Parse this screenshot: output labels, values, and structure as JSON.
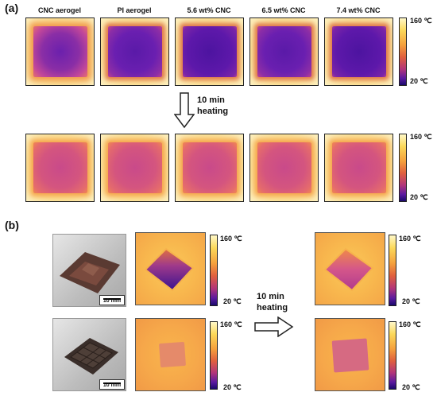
{
  "panel_a": {
    "label": "(a)",
    "columns": [
      "CNC aerogel",
      "PI aerogel",
      "5.6 wt%  CNC",
      "6.5 wt%  CNC",
      "7.4 wt%  CNC"
    ],
    "colorbar_top": "160 ℃",
    "colorbar_bottom": "20 ℃",
    "arrow_text_line1": "10 min",
    "arrow_text_line2": "heating"
  },
  "panel_b": {
    "label": "(b)",
    "scale_bar_1": "10 mm",
    "scale_bar_2": "10 mm",
    "colorbar_top": "160 ℃",
    "colorbar_bottom": "20 ℃",
    "arrow_text_line1": "10 min",
    "arrow_text_line2": "heating"
  }
}
